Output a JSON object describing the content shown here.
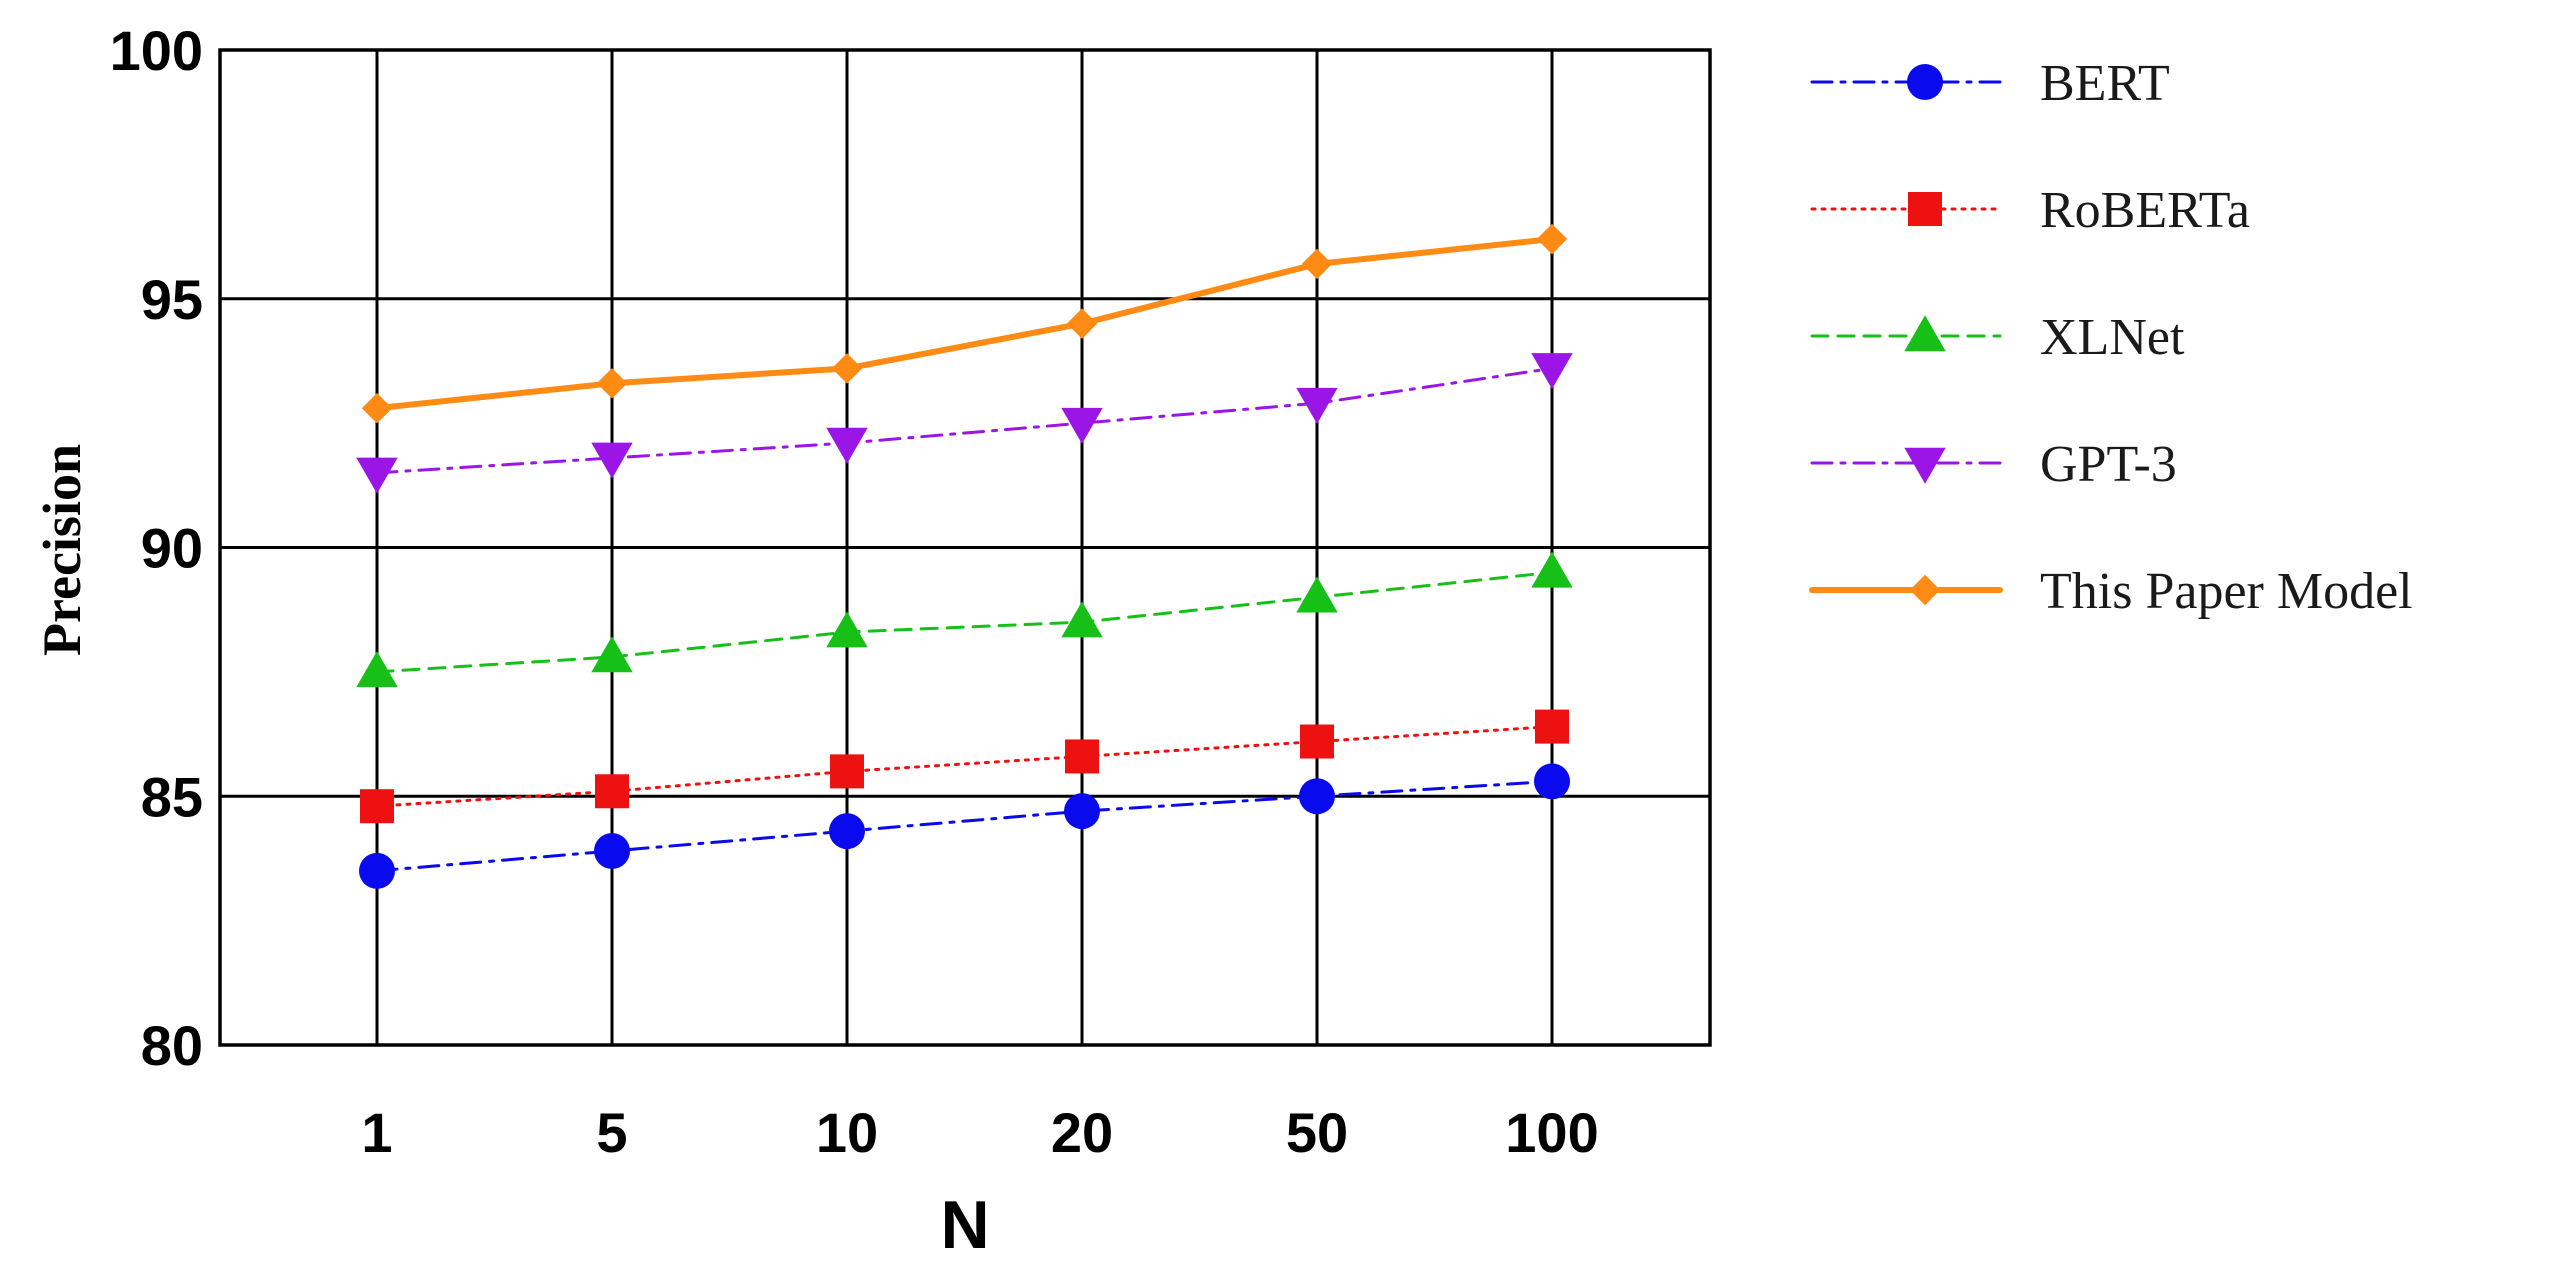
{
  "chart_data": {
    "type": "line",
    "title": "",
    "xlabel": "N",
    "ylabel": "Precision",
    "categories": [
      "1",
      "5",
      "10",
      "20",
      "50",
      "100"
    ],
    "ylim": [
      80,
      100
    ],
    "yticks": [
      80,
      85,
      90,
      95,
      100
    ],
    "grid": true,
    "legend_position": "right",
    "series": [
      {
        "name": "BERT",
        "color": "#0a0aee",
        "marker": "circle",
        "linestyle": "dashdot",
        "values": [
          83.5,
          83.9,
          84.3,
          84.7,
          85.0,
          85.3
        ]
      },
      {
        "name": "RoBERTa",
        "color": "#ee1111",
        "marker": "square",
        "linestyle": "dotted",
        "values": [
          84.8,
          85.1,
          85.5,
          85.8,
          86.1,
          86.4
        ]
      },
      {
        "name": "XLNet",
        "color": "#16c016",
        "marker": "triangle-up",
        "linestyle": "dashed",
        "values": [
          87.5,
          87.8,
          88.3,
          88.5,
          89.0,
          89.5
        ]
      },
      {
        "name": "GPT-3",
        "color": "#9b16e6",
        "marker": "triangle-down",
        "linestyle": "dashdot",
        "values": [
          91.5,
          91.8,
          92.1,
          92.5,
          92.9,
          93.6
        ]
      },
      {
        "name": "This Paper Model",
        "color": "#ff8a14",
        "marker": "diamond",
        "linestyle": "solid",
        "values": [
          92.8,
          93.3,
          93.6,
          94.5,
          95.7,
          96.2
        ]
      }
    ]
  }
}
